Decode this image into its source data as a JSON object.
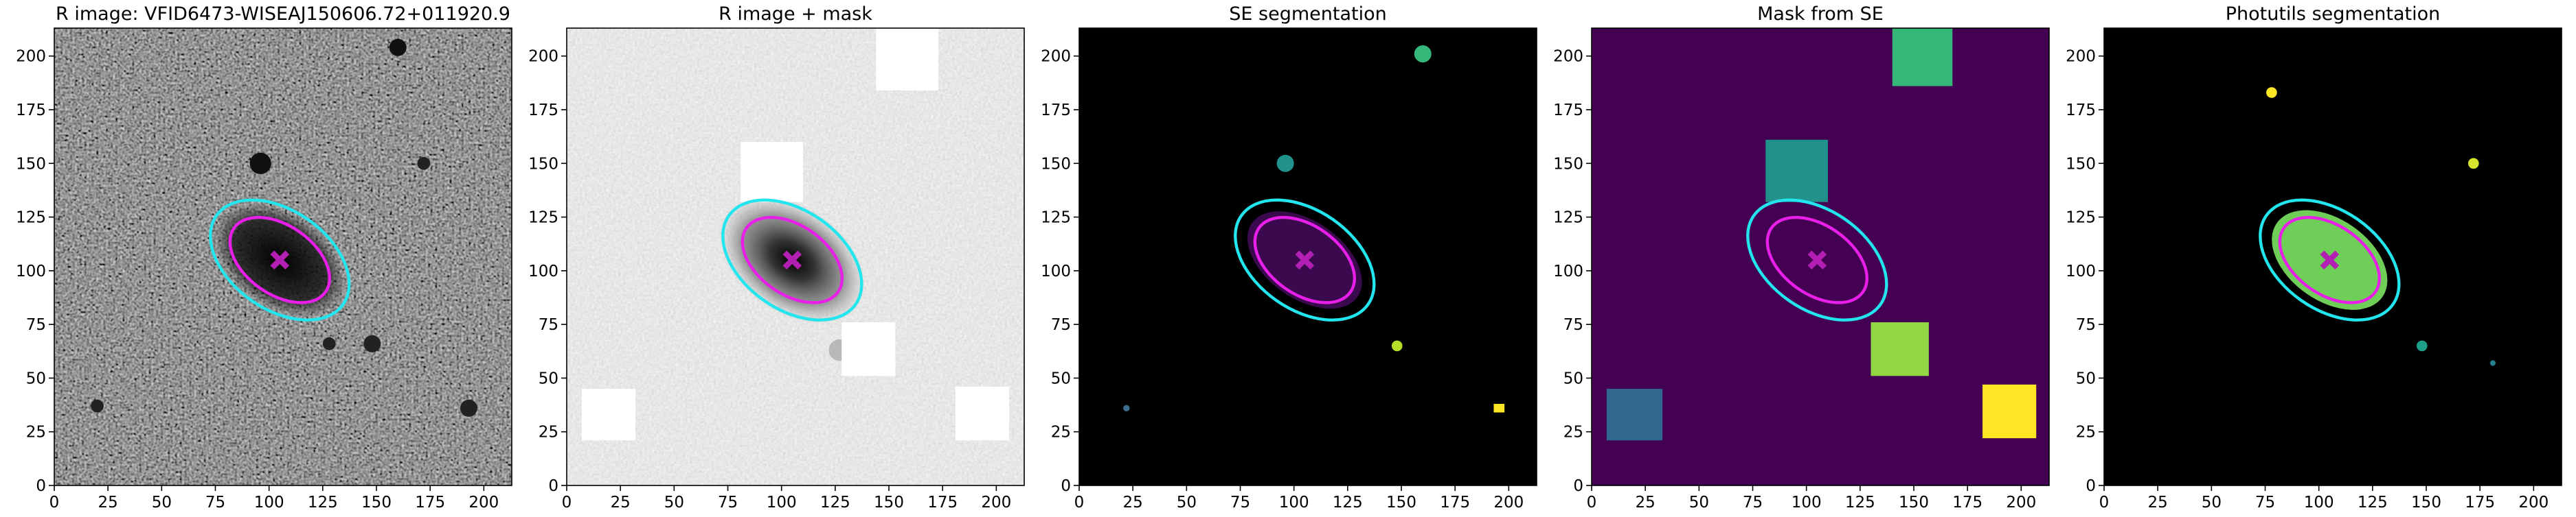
{
  "chart_data": [
    {
      "type": "image",
      "title": "R image: VFID6473-WISEAJ150606.72+011920.9",
      "xlim": [
        0,
        213
      ],
      "ylim": [
        0,
        213
      ],
      "xticks": [
        0,
        25,
        50,
        75,
        100,
        125,
        150,
        175,
        200
      ],
      "yticks": [
        0,
        25,
        50,
        75,
        100,
        125,
        150,
        175,
        200
      ]
    },
    {
      "type": "image",
      "title": "R image + mask",
      "xlim": [
        0,
        213
      ],
      "ylim": [
        0,
        213
      ],
      "xticks": [
        0,
        25,
        50,
        75,
        100,
        125,
        150,
        175,
        200
      ],
      "yticks": [
        0,
        25,
        50,
        75,
        100,
        125,
        150,
        175,
        200
      ]
    },
    {
      "type": "image",
      "title": "SE segmentation",
      "xlim": [
        0,
        213
      ],
      "ylim": [
        0,
        213
      ],
      "xticks": [
        0,
        25,
        50,
        75,
        100,
        125,
        150,
        175,
        200
      ],
      "yticks": [
        0,
        25,
        50,
        75,
        100,
        125,
        150,
        175,
        200
      ]
    },
    {
      "type": "image",
      "title": "Mask from SE",
      "xlim": [
        0,
        213
      ],
      "ylim": [
        0,
        213
      ],
      "xticks": [
        0,
        25,
        50,
        75,
        100,
        125,
        150,
        175,
        200
      ],
      "yticks": [
        0,
        25,
        50,
        75,
        100,
        125,
        150,
        175,
        200
      ]
    },
    {
      "type": "image",
      "title": "Photutils segmentation",
      "xlim": [
        0,
        213
      ],
      "ylim": [
        0,
        213
      ],
      "xticks": [
        0,
        25,
        50,
        75,
        100,
        125,
        150,
        175,
        200
      ],
      "yticks": [
        0,
        25,
        50,
        75,
        100,
        125,
        150,
        175,
        200
      ]
    }
  ]
}
